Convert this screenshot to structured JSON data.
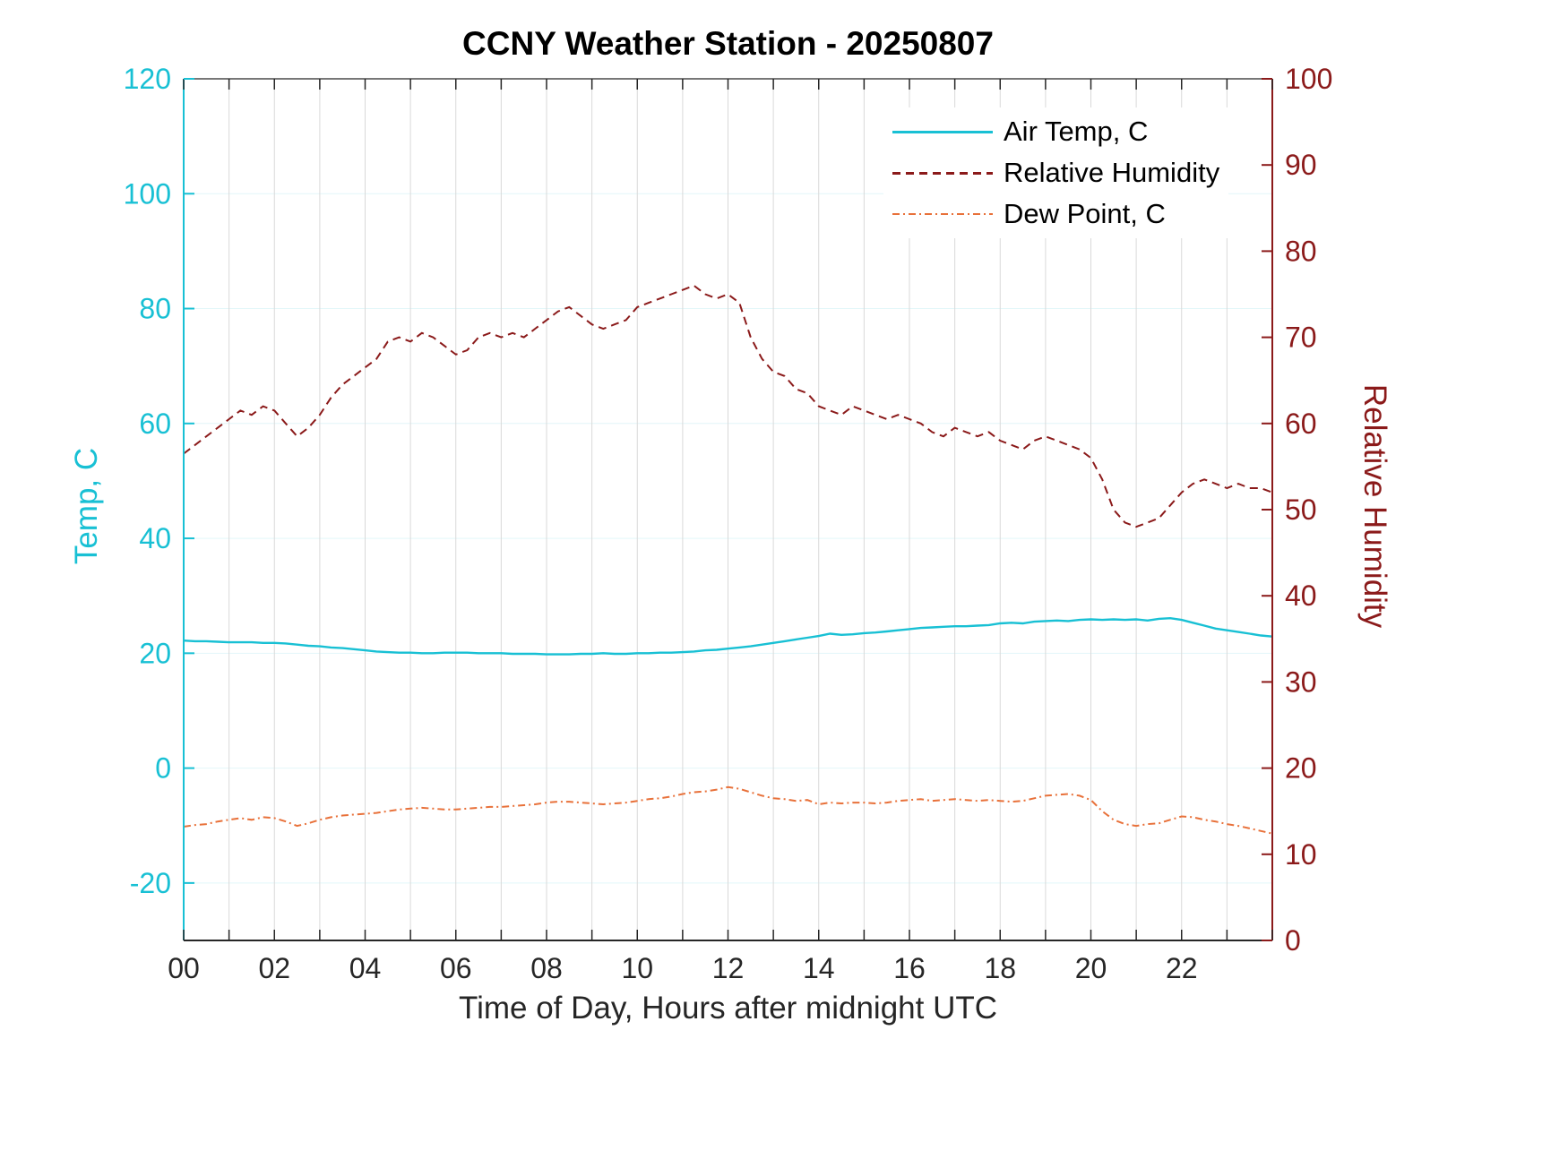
{
  "chart_data": {
    "type": "line",
    "title": "CCNY Weather Station - 20250807",
    "xlabel": "Time of Day, Hours after midnight UTC",
    "grid": {
      "vertical_color": "#d9d9d9",
      "horizontal_color": "#e2f6f9"
    },
    "legend": {
      "position": "top-right-inside"
    },
    "axes": {
      "left": {
        "label": "Temp, C",
        "color": "#18c0d4",
        "lim": [
          -30,
          120
        ],
        "ticks": [
          -20,
          0,
          20,
          40,
          60,
          80,
          100,
          120
        ]
      },
      "right": {
        "label": "Relative Humidity",
        "color": "#8b1a1a",
        "lim": [
          0,
          100
        ],
        "ticks": [
          0,
          10,
          20,
          30,
          40,
          50,
          60,
          70,
          80,
          90,
          100
        ]
      },
      "x": {
        "lim": [
          0,
          24
        ],
        "minor_step": 1,
        "tick_values": [
          0,
          2,
          4,
          6,
          8,
          10,
          12,
          14,
          16,
          18,
          20,
          22
        ],
        "tick_labels": [
          "00",
          "02",
          "04",
          "06",
          "08",
          "10",
          "12",
          "14",
          "16",
          "18",
          "20",
          "22"
        ],
        "spine_color": "#262626"
      }
    },
    "x_start": 0,
    "x_step": 0.25,
    "series": [
      {
        "name": "Air Temp, C",
        "axis": "left",
        "line_style": "solid",
        "color": "#18c0d4",
        "values": [
          22.2,
          22.1,
          22.1,
          22.0,
          21.9,
          21.9,
          21.9,
          21.8,
          21.8,
          21.7,
          21.5,
          21.3,
          21.2,
          21.0,
          20.9,
          20.7,
          20.5,
          20.3,
          20.2,
          20.1,
          20.1,
          20.0,
          20.0,
          20.1,
          20.1,
          20.1,
          20.0,
          20.0,
          20.0,
          19.9,
          19.9,
          19.9,
          19.8,
          19.8,
          19.8,
          19.9,
          19.9,
          20.0,
          19.9,
          19.9,
          20.0,
          20.0,
          20.1,
          20.1,
          20.2,
          20.3,
          20.5,
          20.6,
          20.8,
          21.0,
          21.2,
          21.5,
          21.8,
          22.1,
          22.4,
          22.7,
          23.0,
          23.4,
          23.2,
          23.3,
          23.5,
          23.6,
          23.8,
          24.0,
          24.2,
          24.4,
          24.5,
          24.6,
          24.7,
          24.7,
          24.8,
          24.9,
          25.2,
          25.3,
          25.2,
          25.5,
          25.6,
          25.7,
          25.6,
          25.8,
          25.9,
          25.8,
          25.9,
          25.8,
          25.9,
          25.7,
          26.0,
          26.1,
          25.8,
          25.3,
          24.8,
          24.3,
          24.0,
          23.7,
          23.4,
          23.1,
          22.9
        ]
      },
      {
        "name": "Relative Humidity",
        "axis": "right",
        "line_style": "dashed",
        "color": "#8b1a1a",
        "values": [
          56.5,
          57.5,
          58.5,
          59.5,
          60.5,
          61.5,
          61.0,
          62.0,
          61.5,
          60.0,
          58.5,
          59.5,
          61.0,
          63.0,
          64.5,
          65.5,
          66.5,
          67.5,
          69.5,
          70.0,
          69.5,
          70.5,
          70.0,
          69.0,
          68.0,
          68.5,
          70.0,
          70.5,
          70.0,
          70.5,
          70.0,
          71.0,
          72.0,
          73.0,
          73.5,
          72.5,
          71.5,
          71.0,
          71.5,
          72.0,
          73.5,
          74.0,
          74.5,
          75.0,
          75.5,
          76.0,
          75.0,
          74.5,
          75.0,
          74.0,
          70.0,
          67.5,
          66.0,
          65.5,
          64.0,
          63.5,
          62.0,
          61.5,
          61.0,
          62.0,
          61.5,
          61.0,
          60.5,
          61.0,
          60.5,
          60.0,
          59.0,
          58.5,
          59.5,
          59.0,
          58.5,
          59.0,
          58.0,
          57.5,
          57.0,
          58.0,
          58.5,
          58.0,
          57.5,
          57.0,
          56.0,
          53.5,
          50.0,
          48.5,
          48.0,
          48.5,
          49.0,
          50.5,
          52.0,
          53.0,
          53.5,
          53.0,
          52.5,
          53.0,
          52.5,
          52.5,
          52.0
        ]
      },
      {
        "name": "Dew Point, C",
        "axis": "right",
        "line_style": "dashdot",
        "color": "#e8713a",
        "values": [
          13.2,
          13.4,
          13.5,
          13.8,
          14.0,
          14.2,
          14.0,
          14.3,
          14.2,
          13.8,
          13.3,
          13.6,
          14.0,
          14.3,
          14.5,
          14.6,
          14.7,
          14.8,
          15.0,
          15.2,
          15.3,
          15.4,
          15.3,
          15.2,
          15.2,
          15.3,
          15.4,
          15.5,
          15.5,
          15.6,
          15.7,
          15.8,
          16.0,
          16.1,
          16.1,
          16.0,
          15.9,
          15.8,
          15.9,
          16.0,
          16.2,
          16.4,
          16.5,
          16.7,
          17.0,
          17.2,
          17.3,
          17.5,
          17.8,
          17.6,
          17.2,
          16.8,
          16.5,
          16.4,
          16.2,
          16.3,
          15.8,
          16.0,
          15.9,
          16.0,
          16.0,
          15.9,
          16.0,
          16.2,
          16.3,
          16.4,
          16.2,
          16.3,
          16.4,
          16.3,
          16.2,
          16.3,
          16.2,
          16.1,
          16.2,
          16.5,
          16.8,
          16.9,
          17.0,
          16.8,
          16.3,
          15.0,
          14.0,
          13.5,
          13.3,
          13.5,
          13.6,
          14.0,
          14.4,
          14.3,
          14.0,
          13.8,
          13.5,
          13.3,
          13.0,
          12.7,
          12.4
        ]
      }
    ]
  }
}
